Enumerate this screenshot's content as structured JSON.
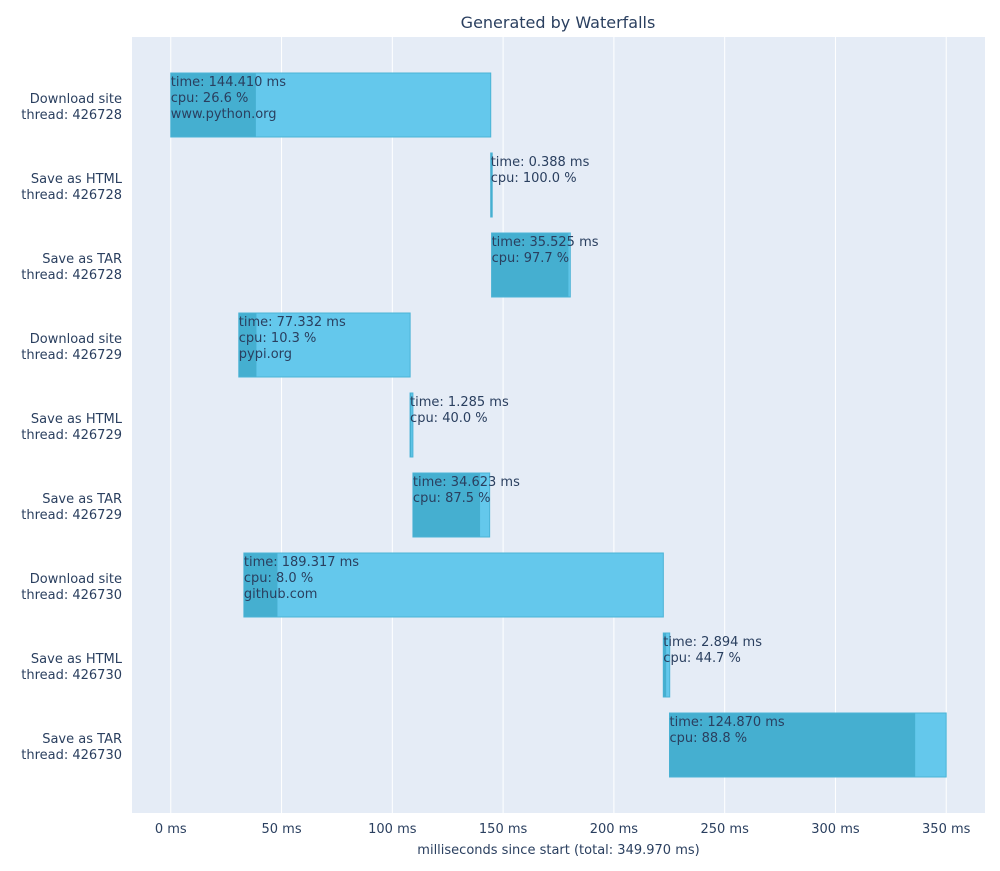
{
  "chart_data": {
    "type": "gantt",
    "title": "Generated by Waterfalls",
    "xlabel": "milliseconds since start (total: 349.970 ms)",
    "xlim": [
      -17.5,
      367.5
    ],
    "x_ticks": [
      0,
      50,
      100,
      150,
      200,
      250,
      300,
      350
    ],
    "x_tick_labels": [
      "0 ms",
      "50 ms",
      "100 ms",
      "150 ms",
      "200 ms",
      "250 ms",
      "300 ms",
      "350 ms"
    ],
    "grid": true,
    "colors": {
      "background": "#e5ecf6",
      "bar": "#64c8ec",
      "cpu": "#45afd0",
      "border": "#4ab3d6",
      "text": "#2a3f5f"
    },
    "tasks": [
      {
        "label": "Download site",
        "thread": "thread: 426728",
        "start": 0.0,
        "duration": 144.41,
        "cpu": 26.6,
        "lines": [
          "time: 144.410 ms",
          "cpu: 26.6 %",
          "www.python.org"
        ]
      },
      {
        "label": "Save as HTML",
        "thread": "thread: 426728",
        "start": 144.4,
        "duration": 0.388,
        "cpu": 100.0,
        "lines": [
          "time: 0.388 ms",
          "cpu: 100.0 %"
        ]
      },
      {
        "label": "Save as TAR",
        "thread": "thread: 426728",
        "start": 144.8,
        "duration": 35.525,
        "cpu": 97.7,
        "lines": [
          "time: 35.525 ms",
          "cpu: 97.7 %"
        ]
      },
      {
        "label": "Download site",
        "thread": "thread: 426729",
        "start": 30.7,
        "duration": 77.332,
        "cpu": 10.3,
        "lines": [
          "time: 77.332 ms",
          "cpu: 10.3 %",
          "pypi.org"
        ]
      },
      {
        "label": "Save as HTML",
        "thread": "thread: 426729",
        "start": 108.0,
        "duration": 1.285,
        "cpu": 40.0,
        "lines": [
          "time: 1.285 ms",
          "cpu: 40.0 %"
        ]
      },
      {
        "label": "Save as TAR",
        "thread": "thread: 426729",
        "start": 109.3,
        "duration": 34.623,
        "cpu": 87.5,
        "lines": [
          "time: 34.623 ms",
          "cpu: 87.5 %"
        ]
      },
      {
        "label": "Download site",
        "thread": "thread: 426730",
        "start": 33.0,
        "duration": 189.317,
        "cpu": 8.0,
        "lines": [
          "time: 189.317 ms",
          "cpu: 8.0 %",
          "github.com"
        ]
      },
      {
        "label": "Save as HTML",
        "thread": "thread: 426730",
        "start": 222.3,
        "duration": 2.894,
        "cpu": 44.7,
        "lines": [
          "time: 2.894 ms",
          "cpu: 44.7 %"
        ]
      },
      {
        "label": "Save as TAR",
        "thread": "thread: 426730",
        "start": 225.1,
        "duration": 124.87,
        "cpu": 88.8,
        "lines": [
          "time: 124.870 ms",
          "cpu: 88.8 %"
        ]
      }
    ]
  }
}
